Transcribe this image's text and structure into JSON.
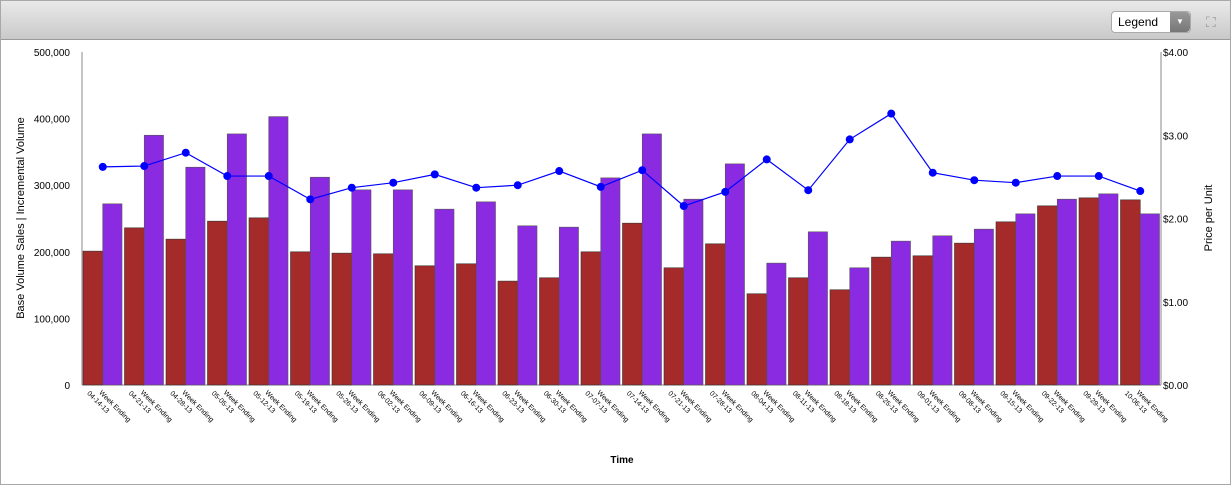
{
  "toolbar": {
    "legend_label": "Legend",
    "legend_dropdown_icon": "chevron-down-icon",
    "expand_icon": "expand-icon"
  },
  "chart_data": {
    "type": "bar",
    "xlabel": "Time",
    "ylabel": "Base Volume Sales | Incremental Volume",
    "y2label": "Price per Unit",
    "ylim": [
      0,
      500000
    ],
    "y2lim": [
      0,
      4
    ],
    "yticks": [
      "0",
      "100,000",
      "200,000",
      "300,000",
      "400,000",
      "500,000"
    ],
    "y2ticks": [
      "$0.00",
      "$1.00",
      "$2.00",
      "$3.00",
      "$4.00"
    ],
    "categories": [
      "Week Ending 04-14-13",
      "Week Ending 04-21-13",
      "Week Ending 04-28-13",
      "Week Ending 05-05-13",
      "Week Ending 05-12-13",
      "Week Ending 05-19-13",
      "Week Ending 05-26-13",
      "Week Ending 06-02-13",
      "Week Ending 06-09-13",
      "Week Ending 06-16-13",
      "Week Ending 06-23-13",
      "Week Ending 06-30-13",
      "Week Ending 07-07-13",
      "Week Ending 07-14-13",
      "Week Ending 07-21-13",
      "Week Ending 07-28-13",
      "Week Ending 08-04-13",
      "Week Ending 08-11-13",
      "Week Ending 08-18-13",
      "Week Ending 08-25-13",
      "Week Ending 09-01-13",
      "Week Ending 09-08-13",
      "Week Ending 09-15-13",
      "Week Ending 09-22-13",
      "Week Ending 09-29-13",
      "Week Ending 10-06-13"
    ],
    "series": [
      {
        "type": "bar",
        "axis": "left",
        "color": "#a52a2a",
        "values": [
          201000,
          236000,
          219000,
          246000,
          251000,
          200000,
          198000,
          197000,
          179000,
          182000,
          156000,
          161000,
          200000,
          243000,
          176000,
          212000,
          137000,
          161000,
          143000,
          192000,
          194000,
          213000,
          245000,
          269000,
          281000,
          278000
        ]
      },
      {
        "type": "bar",
        "axis": "left",
        "color": "#8a2be2",
        "values": [
          272000,
          375000,
          327000,
          377000,
          403000,
          312000,
          293000,
          293000,
          264000,
          275000,
          239000,
          237000,
          311000,
          377000,
          279000,
          332000,
          183000,
          230000,
          176000,
          216000,
          224000,
          234000,
          257000,
          279000,
          287000,
          257000
        ]
      },
      {
        "type": "line",
        "axis": "right",
        "color": "#0000ff",
        "values": [
          2.62,
          2.63,
          2.79,
          2.51,
          2.51,
          2.23,
          2.37,
          2.43,
          2.53,
          2.37,
          2.4,
          2.57,
          2.38,
          2.58,
          2.15,
          2.32,
          2.71,
          2.34,
          2.95,
          3.26,
          2.55,
          2.46,
          2.43,
          2.51,
          2.51,
          2.33
        ]
      }
    ],
    "grid": false,
    "legend": "hidden"
  }
}
